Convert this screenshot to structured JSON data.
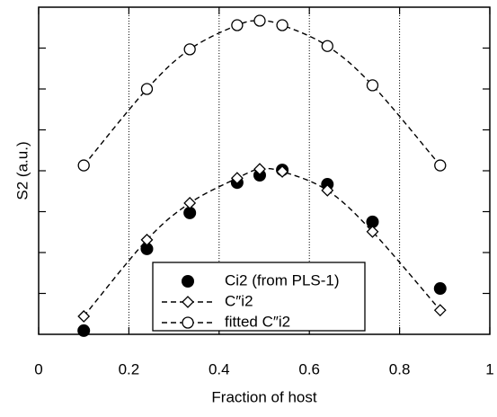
{
  "chart_data": {
    "type": "scatter",
    "xlabel": "Fraction of host",
    "ylabel": "S2 (a.u.)",
    "xlim": [
      0,
      1
    ],
    "xticks": [
      0,
      0.2,
      0.4,
      0.6,
      0.8,
      1
    ],
    "ylim": [
      0,
      8
    ],
    "yticks": [
      1,
      2,
      3,
      4,
      5,
      6,
      7
    ],
    "grid": "x-dotted",
    "legend": "bottom-center",
    "x": [
      0.1,
      0.24,
      0.335,
      0.44,
      0.49,
      0.54,
      0.64,
      0.74,
      0.89
    ],
    "series": [
      {
        "name": "Ci2 (from PLS-1)",
        "marker": "filled-circle",
        "line": false,
        "color": "#000000",
        "values": [
          0.09,
          2.09,
          2.97,
          3.71,
          3.89,
          4.02,
          3.67,
          2.75,
          1.12
        ]
      },
      {
        "name": "C″i2",
        "marker": "diamond",
        "line": true,
        "color": "#000000",
        "values": [
          0.44,
          2.31,
          3.21,
          3.82,
          4.04,
          3.98,
          3.52,
          2.51,
          0.59
        ]
      },
      {
        "name": "fitted C″i2",
        "marker": "open-circle",
        "line": true,
        "color": "#000000",
        "values": [
          4.13,
          6.0,
          6.97,
          7.56,
          7.67,
          7.56,
          7.05,
          6.09,
          4.13
        ]
      }
    ]
  }
}
